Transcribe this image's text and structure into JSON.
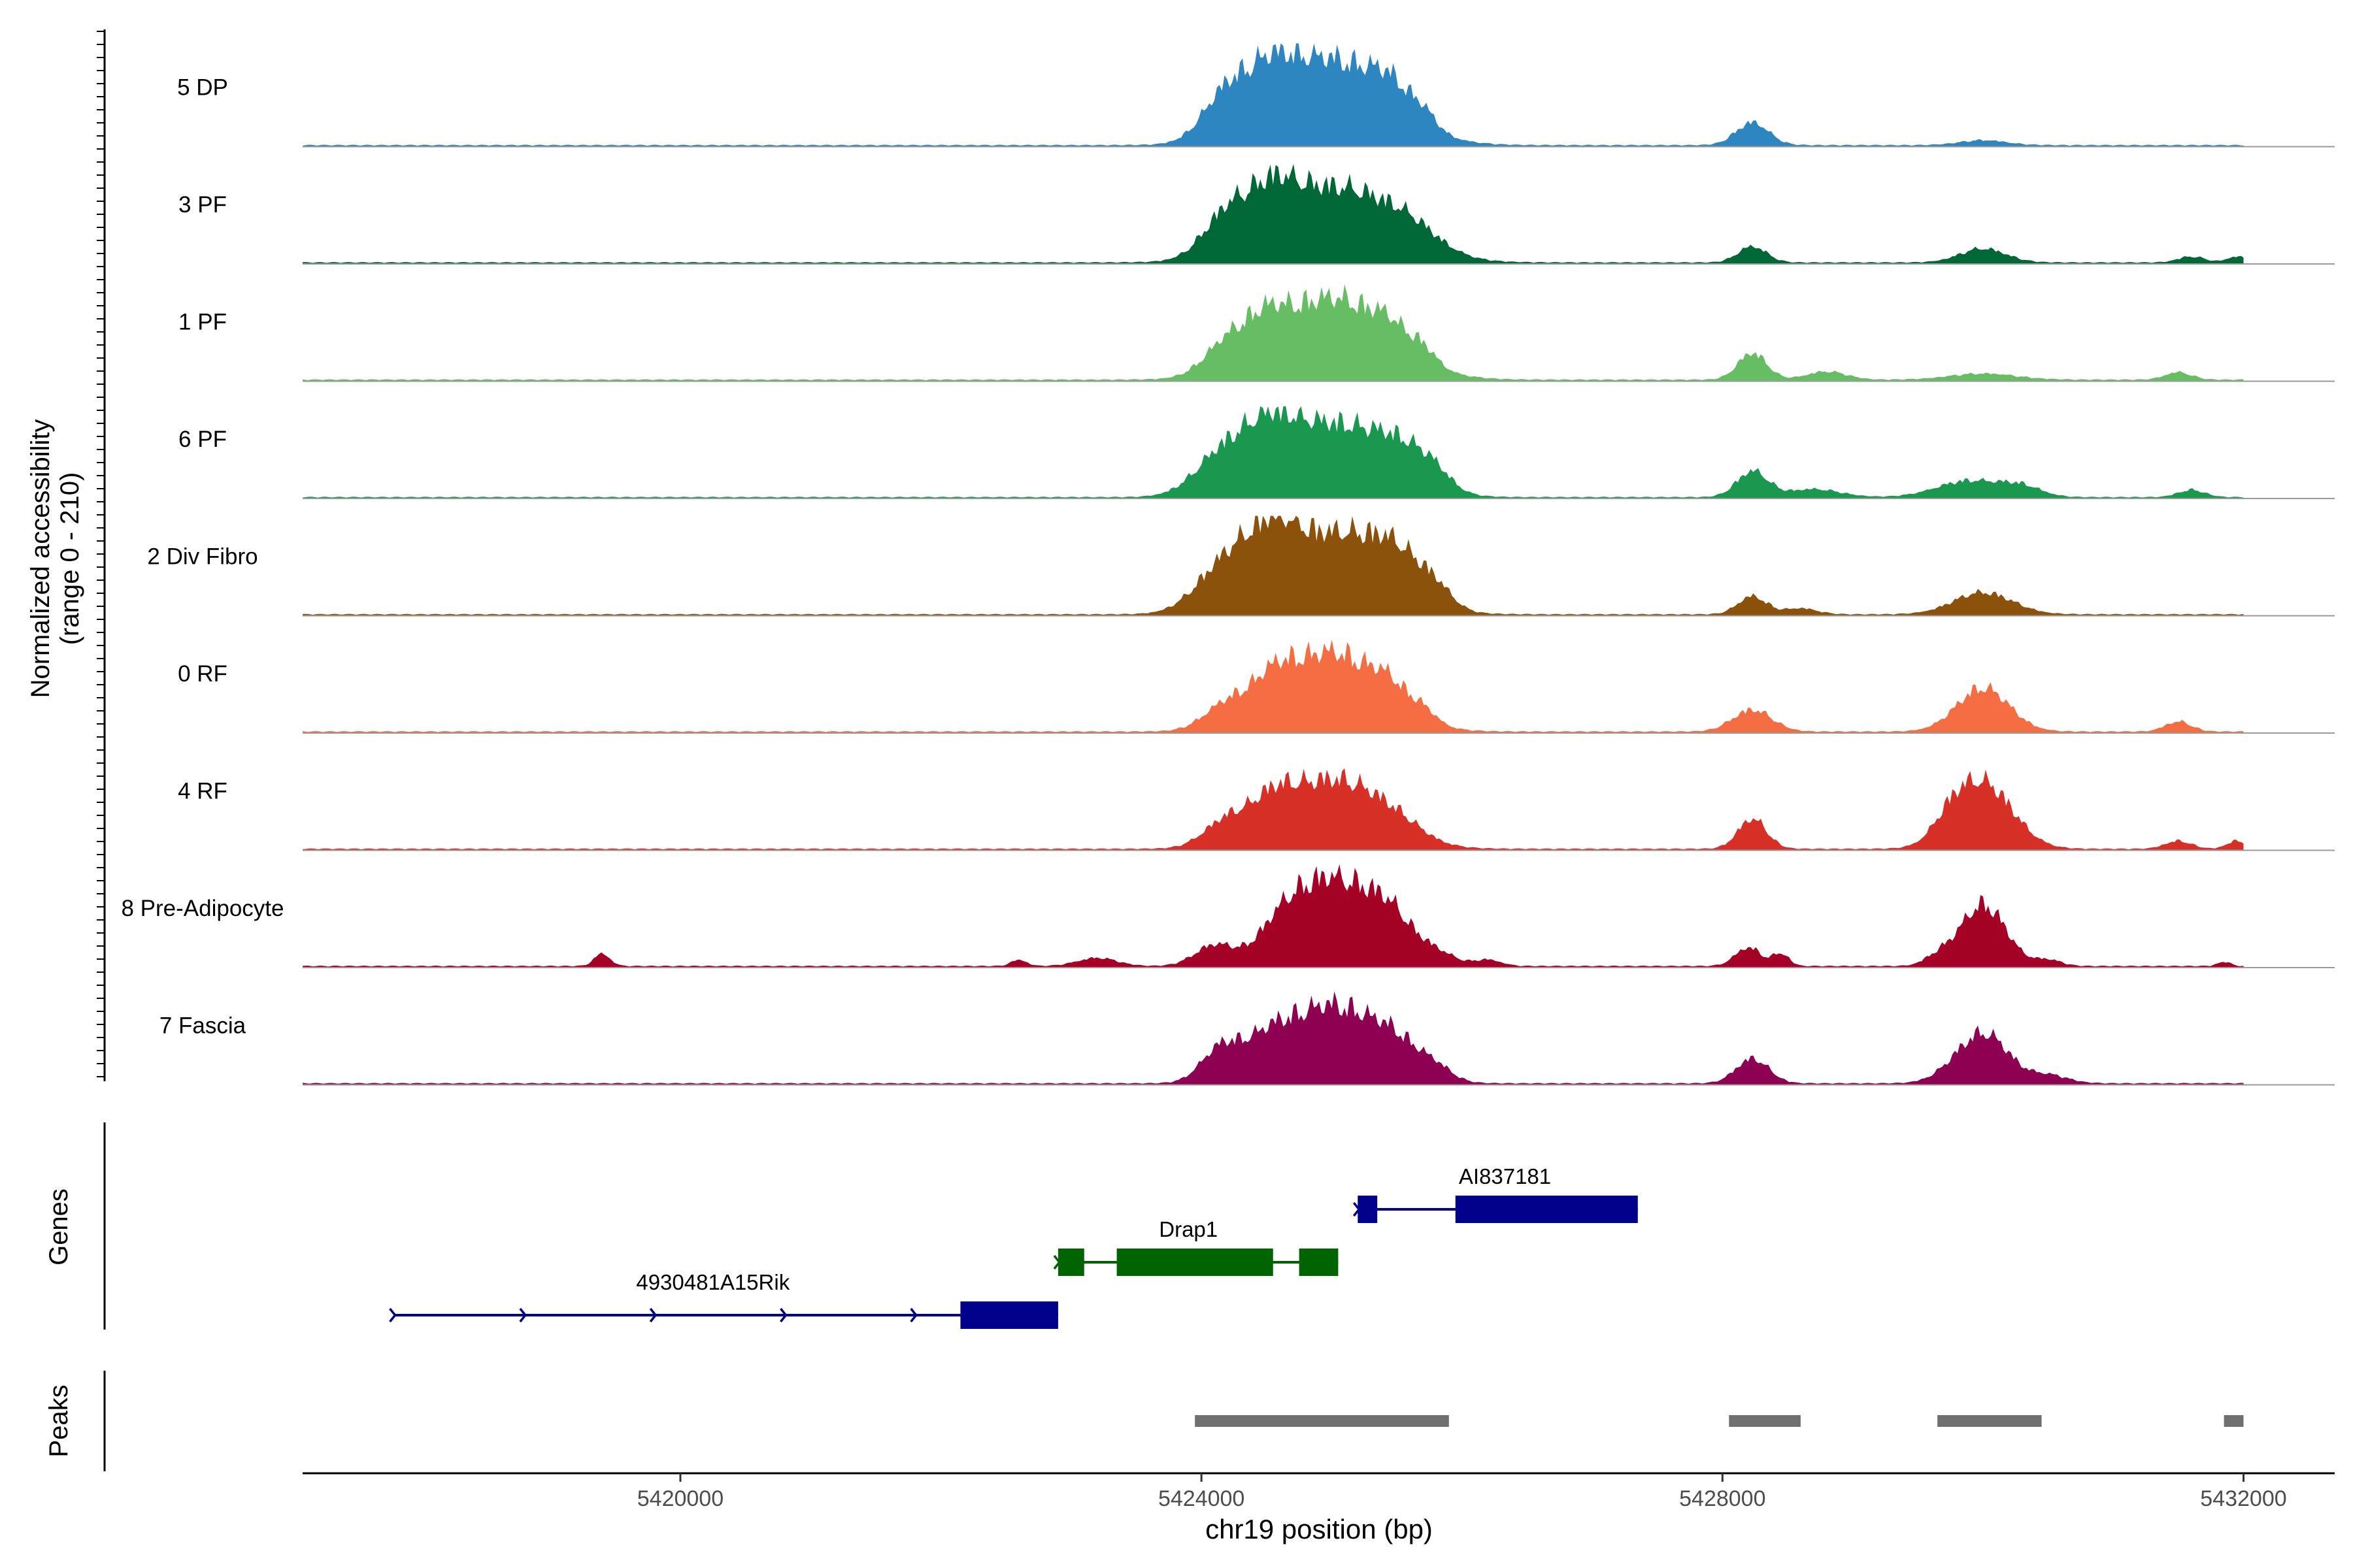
{
  "chart_data": {
    "type": "area",
    "title": "",
    "xlabel": "chr19 position (bp)",
    "ylabel_line1": "Normalized accessibility",
    "ylabel_line2": "(range 0 - 210)",
    "genes_label": "Genes",
    "peaks_label": "Peaks",
    "xlim": [
      5417100,
      5432700
    ],
    "track_range": [
      5417100,
      5432000
    ],
    "xticks": [
      5420000,
      5424000,
      5428000,
      5432000
    ],
    "xtick_labels": [
      "5420000",
      "5424000",
      "5428000",
      "5432000"
    ],
    "ylim": [
      0,
      210
    ],
    "series": [
      {
        "name": "5 DP",
        "color": "#2E86C1",
        "scale": 0.93,
        "peaks": [
          [
            5424200,
            110,
            0.36
          ],
          [
            5424550,
            90,
            0.34
          ],
          [
            5425000,
            210,
            0.85
          ],
          [
            5425450,
            55,
            0.26
          ],
          [
            5425700,
            38,
            0.2
          ],
          [
            5428230,
            55,
            0.25
          ],
          [
            5430000,
            12,
            0.35
          ]
        ]
      },
      {
        "name": "3 PF",
        "color": "#006837",
        "scale": 0.9,
        "peaks": [
          [
            5424200,
            100,
            0.36
          ],
          [
            5424550,
            90,
            0.33
          ],
          [
            5425000,
            190,
            0.9
          ],
          [
            5425600,
            45,
            0.45
          ],
          [
            5428230,
            40,
            0.22
          ],
          [
            5430000,
            35,
            0.35
          ],
          [
            5431600,
            15,
            0.2
          ],
          [
            5431950,
            15,
            0.15
          ]
        ]
      },
      {
        "name": "1 PF",
        "color": "#66BD63",
        "scale": 0.93,
        "peaks": [
          [
            5424200,
            70,
            0.35
          ],
          [
            5424500,
            65,
            0.3
          ],
          [
            5425000,
            200,
            0.85
          ],
          [
            5425450,
            40,
            0.25
          ],
          [
            5425700,
            35,
            0.2
          ],
          [
            5428230,
            65,
            0.22
          ],
          [
            5428800,
            20,
            0.3
          ],
          [
            5430000,
            15,
            0.5
          ],
          [
            5431500,
            18,
            0.2
          ]
        ]
      },
      {
        "name": "6 PF",
        "color": "#1A9850",
        "scale": 0.83,
        "peaks": [
          [
            5424200,
            120,
            0.45
          ],
          [
            5424550,
            95,
            0.35
          ],
          [
            5425000,
            200,
            0.8
          ],
          [
            5425550,
            80,
            0.4
          ],
          [
            5425800,
            35,
            0.25
          ],
          [
            5428230,
            70,
            0.24
          ],
          [
            5428700,
            22,
            0.4
          ],
          [
            5429900,
            45,
            0.5
          ],
          [
            5430300,
            25,
            0.3
          ],
          [
            5431600,
            20,
            0.2
          ]
        ]
      },
      {
        "name": "2 Div Fibro",
        "color": "#8C510A",
        "scale": 0.9,
        "peaks": [
          [
            5424200,
            120,
            0.45
          ],
          [
            5424550,
            110,
            0.35
          ],
          [
            5425000,
            200,
            0.8
          ],
          [
            5425500,
            90,
            0.4
          ],
          [
            5425800,
            40,
            0.25
          ],
          [
            5428230,
            45,
            0.22
          ],
          [
            5428600,
            15,
            0.25
          ],
          [
            5430000,
            55,
            0.45
          ]
        ]
      },
      {
        "name": "0 RF",
        "color": "#F46D43",
        "scale": 0.9,
        "peaks": [
          [
            5424200,
            60,
            0.35
          ],
          [
            5424550,
            65,
            0.3
          ],
          [
            5425000,
            200,
            0.75
          ],
          [
            5425450,
            45,
            0.25
          ],
          [
            5425700,
            30,
            0.2
          ],
          [
            5428230,
            55,
            0.3
          ],
          [
            5430000,
            110,
            0.4
          ],
          [
            5431500,
            25,
            0.2
          ]
        ]
      },
      {
        "name": "4 RF",
        "color": "#D73027",
        "scale": 0.9,
        "peaks": [
          [
            5424200,
            65,
            0.35
          ],
          [
            5424550,
            65,
            0.3
          ],
          [
            5425000,
            175,
            0.75
          ],
          [
            5425500,
            30,
            0.4
          ],
          [
            5428230,
            75,
            0.22
          ],
          [
            5429750,
            40,
            0.25
          ],
          [
            5430000,
            165,
            0.45
          ],
          [
            5431500,
            20,
            0.2
          ],
          [
            5431950,
            20,
            0.15
          ]
        ]
      },
      {
        "name": "8 Pre-Adipocyte",
        "color": "#A50026",
        "scale": 0.93,
        "peaks": [
          [
            5419400,
            30,
            0.12
          ],
          [
            5422600,
            15,
            0.12
          ],
          [
            5423200,
            20,
            0.3
          ],
          [
            5424100,
            50,
            0.3
          ],
          [
            5424600,
            60,
            0.35
          ],
          [
            5425000,
            210,
            0.6
          ],
          [
            5425450,
            90,
            0.35
          ],
          [
            5425800,
            30,
            0.3
          ],
          [
            5426200,
            15,
            0.2
          ],
          [
            5428200,
            45,
            0.2
          ],
          [
            5428450,
            30,
            0.12
          ],
          [
            5429650,
            20,
            0.2
          ],
          [
            5430000,
            150,
            0.35
          ],
          [
            5430500,
            15,
            0.2
          ],
          [
            5431850,
            10,
            0.1
          ]
        ]
      },
      {
        "name": "7 Fascia",
        "color": "#8E0152",
        "scale": 0.93,
        "peaks": [
          [
            5424150,
            80,
            0.3
          ],
          [
            5424500,
            65,
            0.35
          ],
          [
            5425000,
            190,
            0.7
          ],
          [
            5425500,
            60,
            0.35
          ],
          [
            5425800,
            30,
            0.25
          ],
          [
            5428230,
            60,
            0.25
          ],
          [
            5429850,
            45,
            0.35
          ],
          [
            5430050,
            95,
            0.35
          ],
          [
            5430500,
            20,
            0.3
          ]
        ]
      }
    ],
    "genes": [
      {
        "name": "AI837181",
        "color": "#00008B",
        "strand": "+",
        "line": [
          5425200,
          5427350
        ],
        "exons": [
          [
            5425200,
            5425350
          ],
          [
            5425950,
            5427350
          ]
        ],
        "label_x": 5426330
      },
      {
        "name": "Drap1",
        "color": "#006400",
        "strand": "+",
        "line": [
          5422900,
          5425050
        ],
        "exons": [
          [
            5422900,
            5423100
          ],
          [
            5423350,
            5424550
          ],
          [
            5424750,
            5425050
          ]
        ],
        "label_x": 5423900
      },
      {
        "name": "4930481A15Rik",
        "color": "#00008B",
        "strand": "+",
        "line": [
          5417800,
          5422900
        ],
        "exons": [
          [
            5422150,
            5422900
          ]
        ],
        "arrows": [
          5417800,
          5418800,
          5419800,
          5420800,
          5421800
        ],
        "label_x": 5420250
      }
    ],
    "peaks": [
      [
        5423950,
        5425900
      ],
      [
        5428050,
        5428600
      ],
      [
        5429650,
        5430450
      ],
      [
        5431850,
        5432000
      ]
    ]
  }
}
